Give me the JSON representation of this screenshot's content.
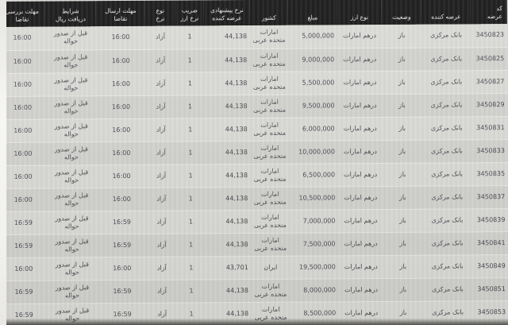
{
  "colors": {
    "header_bg": "#161616",
    "header_text": "#ecebe7",
    "body_text": "#4a4a52",
    "row_odd": "#dadad6",
    "row_even": "#d2d2ce",
    "separator": "#c6c6c2"
  },
  "table": {
    "columns": [
      {
        "key": "code",
        "label_lines": [
          "کد",
          "عرضه"
        ]
      },
      {
        "key": "supplier",
        "label_lines": [
          "عرضه کننده"
        ]
      },
      {
        "key": "status",
        "label_lines": [
          "وضعیت"
        ]
      },
      {
        "key": "currency",
        "label_lines": [
          "نوع ارز"
        ]
      },
      {
        "key": "amount",
        "label_lines": [
          "مبلغ"
        ]
      },
      {
        "key": "country",
        "label_lines": [
          "کشور"
        ]
      },
      {
        "key": "rate",
        "label_lines": [
          "نرخ پیشنهادی",
          "عرضه کننده"
        ]
      },
      {
        "key": "coefficient",
        "label_lines": [
          "ضریب",
          "نرخ ارز"
        ]
      },
      {
        "key": "rate_type",
        "label_lines": [
          "نوع",
          "نرخ"
        ]
      },
      {
        "key": "send_deadline",
        "label_lines": [
          "مهلت ارسال",
          "تقاضا"
        ]
      },
      {
        "key": "rial_condition",
        "label_lines": [
          "شرایط",
          "دریافت ریال"
        ]
      },
      {
        "key": "review_deadline",
        "label_lines": [
          "مهلت بررسی",
          "تقاضا"
        ]
      }
    ],
    "rows": [
      {
        "code": "3450823",
        "supplier": "بانک مرکزی",
        "status": "باز",
        "currency": "درهم امارات",
        "amount": "5,000,000",
        "country": "امارات متحده عربی",
        "rate": "44,138",
        "coefficient": "1",
        "rate_type": "آزاد",
        "send_deadline": "16:00",
        "rial_condition": "قبل از صدور حواله",
        "review_deadline": "16:00"
      },
      {
        "code": "3450825",
        "supplier": "بانک مرکزی",
        "status": "باز",
        "currency": "درهم امارات",
        "amount": "9,000,000",
        "country": "امارات متحده عربی",
        "rate": "44,138",
        "coefficient": "1",
        "rate_type": "آزاد",
        "send_deadline": "16:00",
        "rial_condition": "قبل از صدور حواله",
        "review_deadline": "16:00"
      },
      {
        "code": "3450827",
        "supplier": "بانک مرکزی",
        "status": "باز",
        "currency": "درهم امارات",
        "amount": "5,500,000",
        "country": "امارات متحده عربی",
        "rate": "44,138",
        "coefficient": "1",
        "rate_type": "آزاد",
        "send_deadline": "16:00",
        "rial_condition": "قبل از صدور حواله",
        "review_deadline": "16:00"
      },
      {
        "code": "3450829",
        "supplier": "بانک مرکزی",
        "status": "باز",
        "currency": "درهم امارات",
        "amount": "9,500,000",
        "country": "امارات متحده عربی",
        "rate": "44,138",
        "coefficient": "1",
        "rate_type": "آزاد",
        "send_deadline": "16:00",
        "rial_condition": "قبل از صدور حواله",
        "review_deadline": "16:00"
      },
      {
        "code": "3450831",
        "supplier": "بانک مرکزی",
        "status": "باز",
        "currency": "درهم امارات",
        "amount": "6,000,000",
        "country": "امارات متحده عربی",
        "rate": "44,138",
        "coefficient": "1",
        "rate_type": "آزاد",
        "send_deadline": "16:00",
        "rial_condition": "قبل از صدور حواله",
        "review_deadline": "16:00"
      },
      {
        "code": "3450833",
        "supplier": "بانک مرکزی",
        "status": "باز",
        "currency": "درهم امارات",
        "amount": "10,000,000",
        "country": "امارات متحده عربی",
        "rate": "44,138",
        "coefficient": "1",
        "rate_type": "آزاد",
        "send_deadline": "16:00",
        "rial_condition": "قبل از صدور حواله",
        "review_deadline": "16:00"
      },
      {
        "code": "3450835",
        "supplier": "بانک مرکزی",
        "status": "باز",
        "currency": "درهم امارات",
        "amount": "6,500,000",
        "country": "امارات متحده عربی",
        "rate": "44,138",
        "coefficient": "1",
        "rate_type": "آزاد",
        "send_deadline": "16:00",
        "rial_condition": "قبل از صدور حواله",
        "review_deadline": "16:00"
      },
      {
        "code": "3450837",
        "supplier": "بانک مرکزی",
        "status": "باز",
        "currency": "درهم امارات",
        "amount": "10,500,000",
        "country": "امارات متحده عربی",
        "rate": "44,138",
        "coefficient": "1",
        "rate_type": "آزاد",
        "send_deadline": "16:00",
        "rial_condition": "قبل از صدور حواله",
        "review_deadline": "16:00"
      },
      {
        "code": "3450839",
        "supplier": "بانک مرکزی",
        "status": "باز",
        "currency": "درهم امارات",
        "amount": "7,000,000",
        "country": "امارات متحده عربی",
        "rate": "44,138",
        "coefficient": "1",
        "rate_type": "آزاد",
        "send_deadline": "16:59",
        "rial_condition": "قبل از صدور حواله",
        "review_deadline": "16:59"
      },
      {
        "code": "3450841",
        "supplier": "بانک مرکزی",
        "status": "باز",
        "currency": "درهم امارات",
        "amount": "7,500,000",
        "country": "امارات متحده عربی",
        "rate": "44,138",
        "coefficient": "1",
        "rate_type": "آزاد",
        "send_deadline": "16:59",
        "rial_condition": "قبل از صدور حواله",
        "review_deadline": "16:59"
      },
      {
        "code": "3450849",
        "supplier": "بانک مرکزی",
        "status": "باز",
        "currency": "درهم امارات",
        "amount": "19,500,000",
        "country": "ایران",
        "rate": "43,701",
        "coefficient": "1",
        "rate_type": "آزاد",
        "send_deadline": "16:00",
        "rial_condition": "قبل از صدور حواله",
        "review_deadline": "16:00"
      },
      {
        "code": "3450851",
        "supplier": "بانک مرکزی",
        "status": "باز",
        "currency": "درهم امارات",
        "amount": "8,000,000",
        "country": "امارات متحده عربی",
        "rate": "44,138",
        "coefficient": "1",
        "rate_type": "آزاد",
        "send_deadline": "16:59",
        "rial_condition": "قبل از صدور حواله",
        "review_deadline": "16:59"
      },
      {
        "code": "3450853",
        "supplier": "بانک مرکزی",
        "status": "باز",
        "currency": "درهم امارات",
        "amount": "8,500,000",
        "country": "امارات متحده عربی",
        "rate": "44,138",
        "coefficient": "1",
        "rate_type": "آزاد",
        "send_deadline": "16:59",
        "rial_condition": "قبل از صدور حواله",
        "review_deadline": "16:59"
      }
    ]
  }
}
